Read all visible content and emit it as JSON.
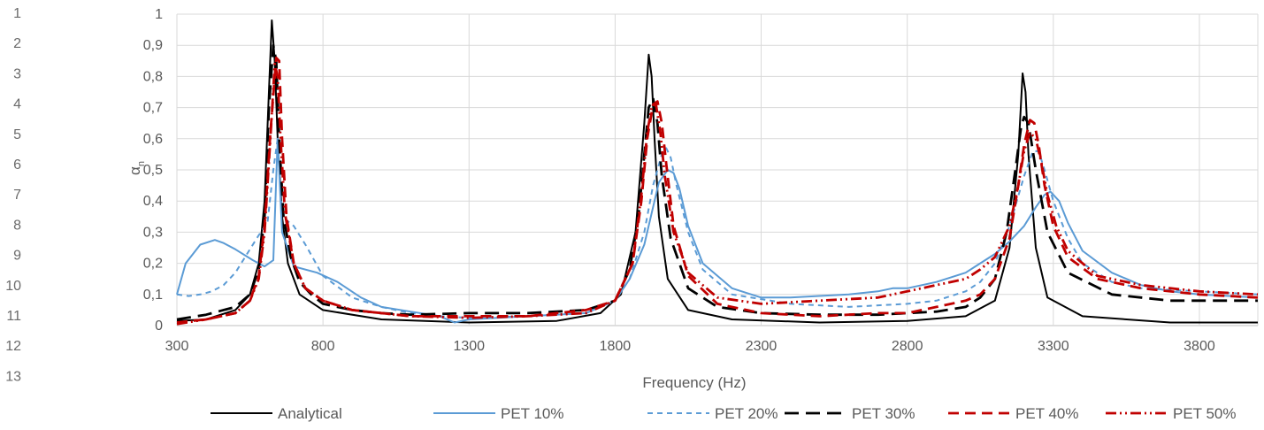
{
  "row_numbers": [
    "1",
    "2",
    "3",
    "4",
    "5",
    "6",
    "7",
    "8",
    "9",
    "10",
    "11",
    "12",
    "13"
  ],
  "chart_data": {
    "type": "line",
    "title": "",
    "xlabel": "Frequency (Hz)",
    "ylabel": "α",
    "ylabel_sub": "n",
    "xlim": [
      300,
      4000
    ],
    "ylim": [
      0,
      1
    ],
    "x_ticks": [
      "300",
      "800",
      "1300",
      "1800",
      "2300",
      "2800",
      "3300",
      "3800"
    ],
    "y_ticks": [
      "0",
      "0,1",
      "0,2",
      "0,3",
      "0,4",
      "0,5",
      "0,6",
      "0,7",
      "0,8",
      "0,9",
      "1"
    ],
    "grid": true,
    "legend_position": "bottom",
    "series": [
      {
        "name": "Analytical",
        "color": "#000000",
        "dash": "solid",
        "x": [
          300,
          400,
          500,
          550,
          580,
          600,
          615,
          625,
          635,
          645,
          660,
          680,
          720,
          800,
          1000,
          1300,
          1600,
          1750,
          1820,
          1870,
          1900,
          1915,
          1925,
          1935,
          1950,
          1980,
          2050,
          2200,
          2500,
          2800,
          3000,
          3100,
          3150,
          3180,
          3195,
          3205,
          3215,
          3240,
          3280,
          3400,
          3700,
          4000
        ],
        "y": [
          0.015,
          0.02,
          0.05,
          0.1,
          0.2,
          0.4,
          0.75,
          0.98,
          0.85,
          0.6,
          0.35,
          0.2,
          0.1,
          0.05,
          0.02,
          0.01,
          0.015,
          0.04,
          0.1,
          0.3,
          0.65,
          0.87,
          0.8,
          0.6,
          0.35,
          0.15,
          0.05,
          0.02,
          0.01,
          0.015,
          0.03,
          0.08,
          0.25,
          0.55,
          0.81,
          0.75,
          0.55,
          0.25,
          0.09,
          0.03,
          0.01,
          0.01
        ]
      },
      {
        "name": "PET 10%",
        "color": "#5B9BD5",
        "dash": "solid",
        "x": [
          300,
          330,
          380,
          430,
          460,
          500,
          560,
          600,
          630,
          645,
          660,
          700,
          780,
          850,
          930,
          1000,
          1100,
          1200,
          1250,
          1300,
          1500,
          1700,
          1800,
          1850,
          1900,
          1930,
          1950,
          1980,
          2000,
          2020,
          2050,
          2100,
          2200,
          2300,
          2400,
          2600,
          2700,
          2750,
          2800,
          2900,
          3000,
          3050,
          3100,
          3150,
          3200,
          3240,
          3270,
          3290,
          3320,
          3350,
          3400,
          3500,
          3600,
          3700,
          3800,
          4000
        ],
        "y": [
          0.1,
          0.2,
          0.26,
          0.275,
          0.265,
          0.245,
          0.21,
          0.19,
          0.21,
          0.6,
          0.3,
          0.19,
          0.17,
          0.14,
          0.09,
          0.06,
          0.045,
          0.03,
          0.01,
          0.02,
          0.03,
          0.04,
          0.08,
          0.15,
          0.26,
          0.38,
          0.46,
          0.5,
          0.49,
          0.44,
          0.32,
          0.2,
          0.12,
          0.09,
          0.09,
          0.1,
          0.11,
          0.12,
          0.12,
          0.14,
          0.17,
          0.2,
          0.23,
          0.27,
          0.32,
          0.38,
          0.42,
          0.43,
          0.4,
          0.33,
          0.24,
          0.17,
          0.13,
          0.11,
          0.1,
          0.09
        ]
      },
      {
        "name": "PET 20%",
        "color": "#5B9BD5",
        "dash": "6,5",
        "x": [
          300,
          340,
          380,
          420,
          460,
          500,
          540,
          580,
          610,
          630,
          645,
          660,
          700,
          740,
          800,
          900,
          1000,
          1100,
          1200,
          1300,
          1500,
          1700,
          1800,
          1850,
          1900,
          1930,
          1960,
          1975,
          1990,
          2010,
          2050,
          2100,
          2200,
          2400,
          2600,
          2800,
          2900,
          3000,
          3050,
          3100,
          3150,
          3200,
          3230,
          3250,
          3270,
          3300,
          3350,
          3400,
          3500,
          3600,
          3800,
          4000
        ],
        "y": [
          0.1,
          0.095,
          0.1,
          0.11,
          0.13,
          0.17,
          0.23,
          0.29,
          0.33,
          0.5,
          0.6,
          0.35,
          0.32,
          0.26,
          0.16,
          0.09,
          0.06,
          0.04,
          0.03,
          0.025,
          0.03,
          0.04,
          0.08,
          0.15,
          0.3,
          0.45,
          0.55,
          0.57,
          0.54,
          0.45,
          0.3,
          0.18,
          0.1,
          0.07,
          0.06,
          0.07,
          0.08,
          0.11,
          0.14,
          0.2,
          0.32,
          0.48,
          0.56,
          0.56,
          0.5,
          0.4,
          0.28,
          0.2,
          0.14,
          0.12,
          0.11,
          0.1
        ]
      },
      {
        "name": "PET 30%",
        "color": "#000000",
        "dash": "16,8",
        "x": [
          300,
          400,
          500,
          550,
          580,
          600,
          615,
          630,
          640,
          650,
          665,
          690,
          720,
          760,
          800,
          900,
          1000,
          1100,
          1300,
          1500,
          1700,
          1800,
          1850,
          1880,
          1900,
          1915,
          1930,
          1945,
          1960,
          1990,
          2050,
          2150,
          2300,
          2500,
          2700,
          2800,
          2900,
          3000,
          3050,
          3100,
          3140,
          3170,
          3190,
          3200,
          3215,
          3240,
          3280,
          3350,
          3500,
          3700,
          4000
        ],
        "y": [
          0.02,
          0.035,
          0.06,
          0.1,
          0.18,
          0.35,
          0.7,
          0.9,
          0.85,
          0.6,
          0.35,
          0.22,
          0.14,
          0.1,
          0.07,
          0.05,
          0.04,
          0.035,
          0.04,
          0.04,
          0.05,
          0.08,
          0.18,
          0.35,
          0.55,
          0.7,
          0.73,
          0.65,
          0.48,
          0.28,
          0.12,
          0.06,
          0.04,
          0.035,
          0.035,
          0.04,
          0.045,
          0.06,
          0.09,
          0.15,
          0.3,
          0.5,
          0.64,
          0.67,
          0.65,
          0.5,
          0.3,
          0.17,
          0.1,
          0.08,
          0.08
        ]
      },
      {
        "name": "PET 40%",
        "color": "#C00000",
        "dash": "12,7",
        "x": [
          300,
          400,
          500,
          550,
          580,
          600,
          620,
          640,
          650,
          660,
          675,
          700,
          740,
          800,
          900,
          1000,
          1100,
          1300,
          1500,
          1700,
          1800,
          1860,
          1890,
          1910,
          1930,
          1945,
          1960,
          1975,
          2000,
          2050,
          2150,
          2300,
          2500,
          2700,
          2800,
          2900,
          3000,
          3050,
          3100,
          3150,
          3180,
          3200,
          3220,
          3235,
          3250,
          3270,
          3300,
          3350,
          3450,
          3600,
          3800,
          4000
        ],
        "y": [
          0.01,
          0.02,
          0.04,
          0.08,
          0.16,
          0.32,
          0.62,
          0.86,
          0.85,
          0.6,
          0.35,
          0.2,
          0.12,
          0.08,
          0.05,
          0.04,
          0.03,
          0.03,
          0.03,
          0.05,
          0.08,
          0.2,
          0.4,
          0.6,
          0.71,
          0.72,
          0.65,
          0.52,
          0.32,
          0.16,
          0.07,
          0.04,
          0.03,
          0.04,
          0.04,
          0.06,
          0.08,
          0.1,
          0.15,
          0.28,
          0.45,
          0.58,
          0.66,
          0.65,
          0.58,
          0.45,
          0.32,
          0.22,
          0.15,
          0.12,
          0.1,
          0.09
        ]
      },
      {
        "name": "PET 50%",
        "color": "#C00000",
        "dash": "12,4,2,4,2,4",
        "x": [
          300,
          400,
          500,
          550,
          580,
          600,
          620,
          635,
          645,
          655,
          670,
          700,
          740,
          800,
          900,
          1000,
          1100,
          1300,
          1500,
          1700,
          1800,
          1860,
          1890,
          1910,
          1925,
          1940,
          1955,
          1970,
          2000,
          2050,
          2150,
          2300,
          2500,
          2700,
          2800,
          2900,
          3000,
          3050,
          3100,
          3150,
          3180,
          3200,
          3220,
          3240,
          3260,
          3280,
          3310,
          3350,
          3450,
          3600,
          3800,
          4000
        ],
        "y": [
          0.005,
          0.02,
          0.04,
          0.08,
          0.15,
          0.3,
          0.6,
          0.84,
          0.8,
          0.6,
          0.36,
          0.2,
          0.12,
          0.08,
          0.05,
          0.04,
          0.03,
          0.025,
          0.03,
          0.04,
          0.08,
          0.2,
          0.42,
          0.62,
          0.7,
          0.71,
          0.62,
          0.48,
          0.3,
          0.17,
          0.09,
          0.07,
          0.08,
          0.09,
          0.11,
          0.13,
          0.15,
          0.18,
          0.22,
          0.32,
          0.45,
          0.56,
          0.62,
          0.6,
          0.52,
          0.42,
          0.32,
          0.24,
          0.16,
          0.13,
          0.11,
          0.1
        ]
      }
    ]
  }
}
